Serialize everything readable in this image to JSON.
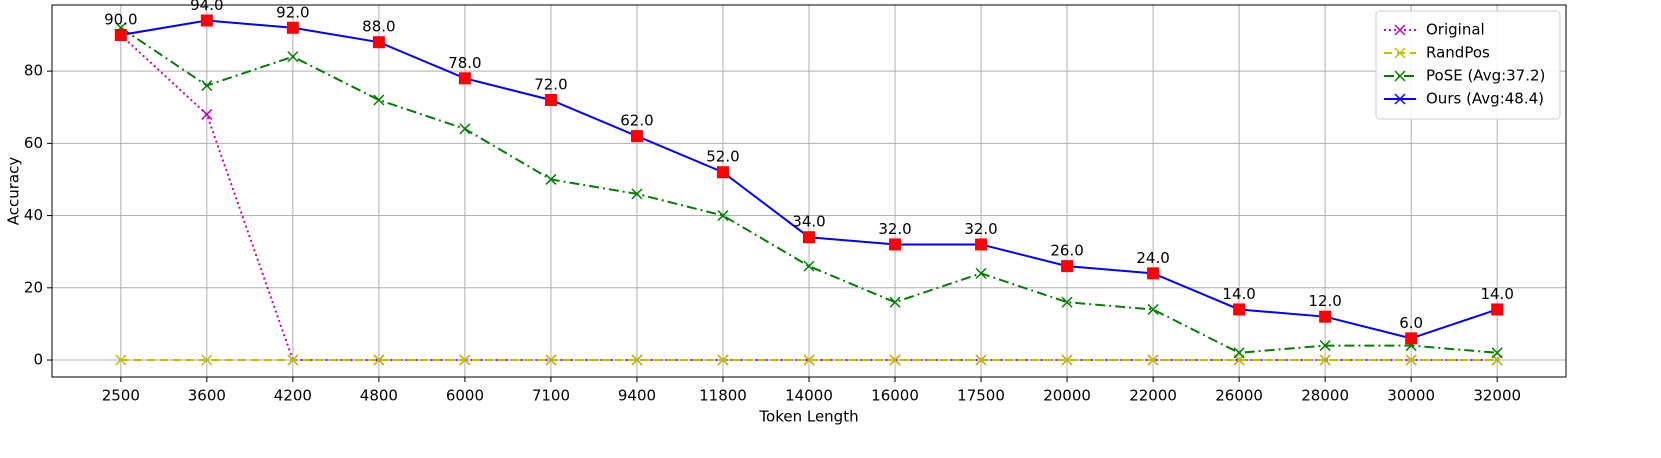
{
  "chart_data": {
    "type": "line",
    "x_label": "Token Length",
    "y_label": "Accuracy",
    "categories": [
      "2500",
      "3600",
      "4200",
      "4800",
      "6000",
      "7100",
      "9400",
      "11800",
      "14000",
      "16000",
      "17500",
      "20000",
      "22000",
      "26000",
      "28000",
      "30000",
      "32000"
    ],
    "series": [
      {
        "name": "Original",
        "color": "#bf00bf",
        "linestyle": "dotted",
        "marker": "x",
        "values": [
          90,
          68,
          0,
          0,
          0,
          0,
          0,
          0,
          0,
          0,
          0,
          0,
          0,
          0,
          0,
          0,
          0
        ]
      },
      {
        "name": "RandPos",
        "color": "#bfbf00",
        "linestyle": "dashed",
        "marker": "x",
        "values": [
          0,
          0,
          0,
          0,
          0,
          0,
          0,
          0,
          0,
          0,
          0,
          0,
          0,
          0,
          0,
          0,
          0
        ]
      },
      {
        "name": "PoSE (Avg:37.2)",
        "color": "#008000",
        "linestyle": "dashdot",
        "marker": "x",
        "values": [
          92,
          76,
          84,
          72,
          64,
          50,
          46,
          40,
          26,
          16,
          24,
          16,
          14,
          2,
          4,
          4,
          2
        ]
      },
      {
        "name": "Ours (Avg:48.4)",
        "color": "#0000ff",
        "linestyle": "solid",
        "marker": "x",
        "highlight_color": "#ff0000",
        "values": [
          90,
          94,
          92,
          88,
          78,
          72,
          62,
          52,
          34,
          32,
          32,
          26,
          24,
          14,
          12,
          6,
          14
        ],
        "value_labels": [
          "90.0",
          "94.0",
          "92.0",
          "88.0",
          "78.0",
          "72.0",
          "62.0",
          "52.0",
          "34.0",
          "32.0",
          "32.0",
          "26.0",
          "24.0",
          "14.0",
          "12.0",
          "6.0",
          "14.0"
        ]
      }
    ],
    "ylim": [
      -4.7,
      98.3
    ],
    "yticks": [
      0,
      20,
      40,
      60,
      80
    ],
    "grid": true,
    "legend": "upper right"
  }
}
